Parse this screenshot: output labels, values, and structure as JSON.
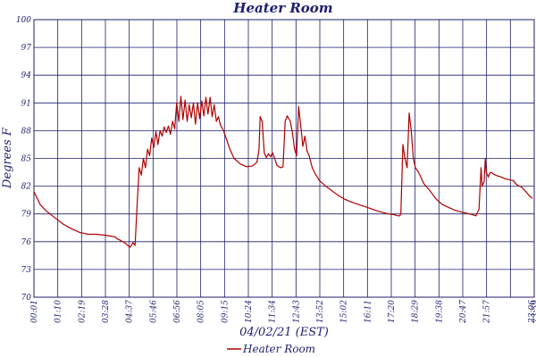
{
  "colors": {
    "text": "#1c1f6e",
    "grid": "#1c1f6e",
    "series": "#b00000",
    "background": "#ffffff"
  },
  "chart_data": {
    "type": "line",
    "title": "Heater Room",
    "xlabel": "04/02/21 (EST)",
    "ylabel": "Degrees F",
    "ylim": [
      70,
      100
    ],
    "grid": true,
    "legend": "bottom-center",
    "y_ticks": [
      "70",
      "73",
      "76",
      "79",
      "82",
      "85",
      "88",
      "91",
      "94",
      "97",
      "100"
    ],
    "x_ticks": [
      "00:01",
      "01:10",
      "02:19",
      "03:28",
      "04:37",
      "05:46",
      "06:56",
      "08:05",
      "09:15",
      "10:24",
      "11:34",
      "12:43",
      "13:52",
      "15:02",
      "16:11",
      "17:20",
      "18:29",
      "19:38",
      "20:47",
      "21:57",
      "23:06",
      "23:59"
    ],
    "series": [
      {
        "name": "Heater Room",
        "x": [
          0.0,
          0.3,
          0.6,
          1.0,
          1.4,
          1.8,
          2.2,
          2.6,
          3.0,
          3.4,
          3.7,
          3.9,
          4.0,
          4.1,
          4.25,
          4.35,
          4.45,
          4.55,
          4.6,
          4.65,
          4.75,
          4.85,
          4.95,
          5.05,
          5.15,
          5.25,
          5.35,
          5.45,
          5.55,
          5.65,
          5.75,
          5.85,
          5.95,
          6.05,
          6.15,
          6.25,
          6.35,
          6.45,
          6.55,
          6.65,
          6.75,
          6.85,
          6.95,
          7.05,
          7.15,
          7.25,
          7.35,
          7.45,
          7.55,
          7.65,
          7.75,
          7.85,
          7.95,
          8.05,
          8.15,
          8.25,
          8.35,
          8.45,
          8.55,
          8.65,
          8.75,
          8.85,
          8.95,
          9.1,
          9.25,
          9.4,
          9.6,
          9.9,
          10.2,
          10.5,
          10.7,
          10.8,
          10.85,
          10.95,
          11.05,
          11.15,
          11.25,
          11.35,
          11.45,
          11.55,
          11.65,
          11.75,
          11.85,
          11.95,
          12.05,
          12.15,
          12.3,
          12.4,
          12.5,
          12.6,
          12.7,
          12.8,
          12.9,
          13.0,
          13.1,
          13.2,
          13.35,
          13.5,
          13.7,
          14.0,
          14.3,
          14.6,
          14.9,
          15.2,
          15.6,
          16.0,
          16.5,
          17.0,
          17.3,
          17.45,
          17.55,
          17.6,
          17.7,
          17.8,
          17.9,
          18.0,
          18.1,
          18.2,
          18.3,
          18.45,
          18.7,
          19.0,
          19.3,
          19.6,
          19.9,
          20.2,
          20.5,
          20.9,
          21.2,
          21.35,
          21.45,
          21.5,
          21.6,
          21.65,
          21.7,
          21.8,
          21.85,
          21.9,
          22.0,
          22.05,
          22.15,
          22.25,
          22.4,
          22.6,
          22.8,
          23.0,
          23.1,
          23.2,
          23.4,
          23.6,
          23.75,
          23.9
        ],
        "y": [
          81.4,
          80.0,
          79.3,
          78.6,
          77.9,
          77.4,
          77.0,
          76.8,
          76.8,
          76.7,
          76.6,
          76.5,
          76.3,
          76.2,
          76.0,
          75.9,
          75.7,
          75.5,
          75.4,
          75.5,
          75.9,
          75.6,
          80.0,
          84.0,
          83.2,
          85.0,
          84.0,
          86.0,
          85.3,
          87.2,
          86.2,
          87.9,
          86.5,
          88.0,
          87.4,
          88.4,
          87.8,
          88.5,
          87.6,
          89.0,
          88.2,
          91.0,
          89.0,
          91.7,
          89.2,
          91.3,
          89.0,
          90.8,
          89.4,
          91.0,
          88.7,
          91.0,
          89.3,
          91.2,
          89.6,
          91.6,
          89.8,
          91.6,
          89.5,
          90.8,
          89.0,
          89.5,
          88.6,
          88.0,
          87.0,
          86.0,
          85.0,
          84.4,
          84.1,
          84.2,
          84.6,
          86.0,
          89.5,
          89.0,
          85.6,
          85.1,
          85.5,
          85.2,
          85.6,
          85.0,
          84.3,
          84.1,
          84.0,
          84.1,
          89.0,
          89.6,
          89.0,
          87.8,
          86.0,
          85.3,
          90.6,
          88.5,
          86.3,
          87.4,
          85.8,
          85.3,
          84.0,
          83.3,
          82.6,
          82.0,
          81.5,
          81.0,
          80.6,
          80.3,
          80.0,
          79.7,
          79.3,
          79.0,
          78.9,
          78.8,
          78.8,
          79.0,
          86.5,
          85.0,
          84.0,
          89.9,
          88.0,
          85.0,
          84.0,
          83.5,
          82.3,
          81.5,
          80.6,
          80.0,
          79.7,
          79.4,
          79.2,
          79.0,
          78.8,
          79.5,
          84.0,
          82.0,
          82.5,
          85.0,
          83.5,
          83.0,
          83.3,
          83.5,
          83.4,
          83.3,
          83.2,
          83.1,
          83.0,
          82.8,
          82.7,
          82.6,
          82.3,
          82.1,
          81.9,
          81.4,
          81.0,
          80.7
        ]
      }
    ]
  }
}
